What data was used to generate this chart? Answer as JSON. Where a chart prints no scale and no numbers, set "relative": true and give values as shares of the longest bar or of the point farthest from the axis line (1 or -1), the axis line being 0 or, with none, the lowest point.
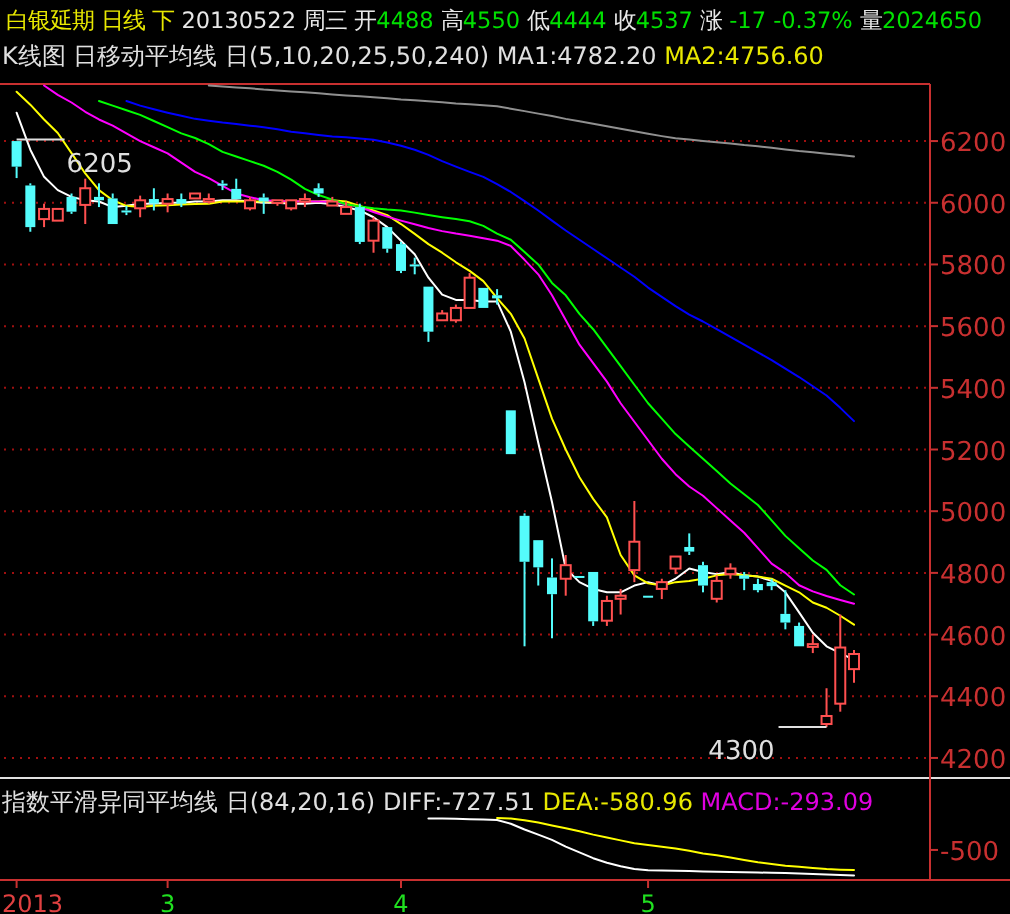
{
  "chart_data": [
    {
      "type": "candlestick",
      "title": "白银延期 日线 下",
      "subtitle": "20130522 周三 开4488 高4550 低4444 收4537 涨 -17 -0.37% 量2024650",
      "categories": [
        null,
        null,
        null,
        null,
        null,
        null,
        null,
        null,
        null,
        null,
        null,
        null,
        null,
        null,
        null,
        null,
        null,
        null,
        null,
        null,
        null,
        null,
        null,
        null,
        null,
        null,
        null,
        null,
        null,
        null,
        null,
        null,
        null,
        null,
        null,
        null,
        null,
        null,
        null,
        null,
        null,
        null,
        null,
        null,
        null,
        null,
        null,
        null,
        null,
        null,
        null,
        null,
        null,
        null,
        null,
        null,
        null,
        null,
        null,
        null,
        null,
        null
      ],
      "ohlc": [
        [
          6200,
          6205,
          6080,
          6117
        ],
        [
          6056,
          6063,
          5906,
          5921
        ],
        [
          5947,
          5997,
          5921,
          5980
        ],
        [
          5942,
          5986,
          5936,
          5980
        ],
        [
          6019,
          6030,
          5964,
          5971
        ],
        [
          5993,
          6078,
          5931,
          6047
        ],
        [
          6019,
          6063,
          5986,
          6008
        ],
        [
          6014,
          6030,
          5925,
          5931
        ],
        [
          5975,
          5990,
          5960,
          5969
        ],
        [
          5982,
          6023,
          5953,
          6008
        ],
        [
          6012,
          6047,
          5975,
          5997
        ],
        [
          5997,
          6030,
          5969,
          6012
        ],
        [
          6012,
          6030,
          5986,
          5997
        ],
        [
          6014,
          6034,
          6008,
          6030
        ],
        [
          6004,
          6030,
          5997,
          6012
        ],
        [
          6062,
          6073,
          6041,
          6056
        ],
        [
          6045,
          6078,
          6008,
          6012
        ],
        [
          5982,
          6019,
          5975,
          6008
        ],
        [
          6017,
          6030,
          5964,
          6004
        ],
        [
          5999,
          6012,
          5990,
          6008
        ],
        [
          5982,
          6012,
          5975,
          6008
        ],
        [
          6004,
          6030,
          5986,
          6012
        ],
        [
          6047,
          6063,
          6019,
          6030
        ],
        [
          5991,
          6019,
          5986,
          6004
        ],
        [
          5964,
          6004,
          5960,
          5986
        ],
        [
          5986,
          5997,
          5866,
          5873
        ],
        [
          5877,
          5953,
          5838,
          5942
        ],
        [
          5921,
          5925,
          5838,
          5851
        ],
        [
          5866,
          5873,
          5772,
          5779
        ],
        [
          5800,
          5822,
          5768,
          5794
        ],
        [
          5728,
          5728,
          5549,
          5582
        ],
        [
          5619,
          5652,
          5615,
          5641
        ],
        [
          5619,
          5670,
          5611,
          5659
        ],
        [
          5659,
          5772,
          5654,
          5757
        ],
        [
          5724,
          5728,
          5654,
          5659
        ],
        [
          5700,
          5720,
          5670,
          5690
        ],
        [
          5327,
          5331,
          5185,
          5185
        ],
        [
          4985,
          4993,
          4562,
          4836
        ],
        [
          4906,
          4906,
          4759,
          4818
        ],
        [
          4785,
          4847,
          4588,
          4731
        ],
        [
          4781,
          4858,
          4726,
          4825
        ],
        [
          4790,
          4795,
          4779,
          4784
        ],
        [
          4803,
          4803,
          4628,
          4643
        ],
        [
          4645,
          4726,
          4628,
          4709
        ],
        [
          4716,
          4748,
          4665,
          4726
        ],
        [
          4809,
          5033,
          4770,
          4901
        ],
        [
          4726,
          4730,
          4720,
          4724
        ],
        [
          4748,
          4781,
          4715,
          4770
        ],
        [
          4814,
          4858,
          4796,
          4853
        ],
        [
          4884,
          4928,
          4858,
          4869
        ],
        [
          4825,
          4836,
          4737,
          4759
        ],
        [
          4716,
          4792,
          4704,
          4774
        ],
        [
          4796,
          4831,
          4781,
          4814
        ],
        [
          4792,
          4803,
          4744,
          4781
        ],
        [
          4764,
          4781,
          4737,
          4744
        ],
        [
          4770,
          4781,
          4744,
          4757
        ],
        [
          4667,
          4744,
          4617,
          4639
        ],
        [
          4628,
          4639,
          4558,
          4562
        ],
        [
          4560,
          4599,
          4540,
          4569
        ],
        [
          4310,
          4426,
          4300,
          4336
        ],
        [
          4376,
          4665,
          4350,
          4558
        ],
        [
          4488,
          4550,
          4444,
          4537
        ]
      ],
      "series": [
        {
          "type": "line",
          "color": "#ffffff",
          "values": [
            6292,
            6172,
            6084,
            6041,
            6019,
            6008,
            6004,
            5986,
            5990,
            5997,
            5997,
            6000,
            6000,
            6004,
            6004,
            6008,
            6008,
            6004,
            6000,
            6000,
            5997,
            5997,
            6000,
            5995,
            5986,
            5975,
            5953,
            5921,
            5877,
            5833,
            5757,
            5702,
            5685,
            5685,
            5680,
            5680,
            5582,
            5418,
            5222,
            5030,
            4814,
            4770,
            4748,
            4737,
            4737,
            4759,
            4770,
            4759,
            4781,
            4814,
            4803,
            4796,
            4803,
            4792,
            4788,
            4774,
            4737,
            4672,
            4606,
            4562,
            4540,
            4518
          ]
        },
        {
          "type": "line",
          "color": "#ffff00",
          "values": [
            6360,
            6318,
            6270,
            6226,
            6161,
            6095,
            6041,
            6008,
            5990,
            5986,
            5990,
            5992,
            5994,
            5996,
            5997,
            6004,
            6004,
            6004,
            6004,
            6004,
            6004,
            6004,
            6004,
            6008,
            6004,
            5990,
            5975,
            5960,
            5931,
            5899,
            5866,
            5838,
            5807,
            5779,
            5746,
            5691,
            5640,
            5560,
            5430,
            5300,
            5200,
            5110,
            5040,
            4980,
            4858,
            4792,
            4766,
            4759,
            4770,
            4774,
            4781,
            4792,
            4796,
            4792,
            4788,
            4781,
            4759,
            4737,
            4704,
            4687,
            4661,
            4632
          ]
        },
        {
          "type": "line",
          "color": "#ff00ff",
          "values": [
            null,
            null,
            6380,
            6350,
            6325,
            6295,
            6270,
            6250,
            6225,
            6200,
            6180,
            6160,
            6130,
            6100,
            6080,
            6055,
            6030,
            6018,
            6008,
            6006,
            6005,
            6004,
            6004,
            6004,
            5995,
            5986,
            5970,
            5955,
            5942,
            5930,
            5918,
            5908,
            5900,
            5893,
            5885,
            5877,
            5860,
            5815,
            5768,
            5700,
            5620,
            5540,
            5480,
            5420,
            5350,
            5290,
            5230,
            5170,
            5120,
            5080,
            5050,
            5010,
            4970,
            4930,
            4880,
            4830,
            4800,
            4760,
            4740,
            4725,
            4712,
            4700
          ]
        },
        {
          "type": "line",
          "color": "#00ff00",
          "values": [
            null,
            null,
            null,
            null,
            null,
            null,
            6330,
            6315,
            6300,
            6285,
            6265,
            6245,
            6225,
            6210,
            6190,
            6165,
            6150,
            6135,
            6120,
            6100,
            6075,
            6045,
            6025,
            6010,
            5995,
            5988,
            5982,
            5978,
            5975,
            5968,
            5960,
            5953,
            5947,
            5940,
            5925,
            5900,
            5880,
            5840,
            5800,
            5740,
            5700,
            5640,
            5590,
            5530,
            5470,
            5410,
            5350,
            5300,
            5250,
            5210,
            5170,
            5130,
            5090,
            5055,
            5020,
            4970,
            4920,
            4880,
            4840,
            4810,
            4760,
            4730
          ]
        },
        {
          "type": "line",
          "color": "#0000ff",
          "values": [
            null,
            null,
            null,
            null,
            null,
            null,
            null,
            null,
            6330,
            6315,
            6303,
            6292,
            6282,
            6272,
            6266,
            6260,
            6255,
            6250,
            6245,
            6238,
            6230,
            6225,
            6220,
            6215,
            6212,
            6208,
            6204,
            6195,
            6185,
            6172,
            6155,
            6135,
            6117,
            6100,
            6084,
            6060,
            6035,
            6005,
            5975,
            5942,
            5910,
            5880,
            5850,
            5820,
            5790,
            5760,
            5725,
            5695,
            5665,
            5637,
            5615,
            5590,
            5565,
            5540,
            5515,
            5490,
            5462,
            5435,
            5405,
            5375,
            5335,
            5292
          ]
        },
        {
          "type": "line",
          "color": "#909090",
          "values": [
            null,
            null,
            null,
            null,
            null,
            null,
            null,
            null,
            null,
            null,
            null,
            null,
            null,
            null,
            6380,
            6377,
            6374,
            6371,
            6367,
            6364,
            6361,
            6358,
            6355,
            6351,
            6348,
            6345,
            6342,
            6339,
            6335,
            6332,
            6329,
            6326,
            6322,
            6319,
            6316,
            6313,
            6305,
            6297,
            6289,
            6281,
            6272,
            6264,
            6256,
            6248,
            6240,
            6232,
            6224,
            6216,
            6209,
            6205,
            6200,
            6196,
            6192,
            6187,
            6183,
            6178,
            6173,
            6168,
            6164,
            6159,
            6155,
            6150
          ]
        }
      ],
      "ylim": [
        4135,
        6385
      ],
      "yticks": [
        4200,
        4400,
        4600,
        4800,
        5000,
        5200,
        5400,
        5600,
        5800,
        6000,
        6200
      ],
      "grid": "y",
      "tick_labels": "y",
      "annotations": [
        "K线图 日移动平均线 日(5,10,20,25,50,240)",
        "MA1:4782.20",
        "MA2:4756.60",
        "6205",
        "4300"
      ]
    },
    {
      "type": "line",
      "categories": [
        "2013",
        null,
        null,
        null,
        null,
        null,
        null,
        null,
        null,
        null,
        null,
        "3",
        null,
        null,
        null,
        null,
        null,
        null,
        null,
        null,
        null,
        null,
        null,
        null,
        null,
        null,
        null,
        null,
        "4",
        null,
        null,
        null,
        null,
        null,
        null,
        null,
        null,
        null,
        null,
        null,
        null,
        null,
        null,
        null,
        null,
        null,
        "5",
        null,
        null,
        null,
        null,
        null,
        null,
        null,
        null,
        null,
        null,
        null,
        null,
        null,
        null,
        null
      ],
      "series": [
        {
          "color": "#ffffff",
          "values": [
            null,
            null,
            null,
            null,
            null,
            null,
            null,
            null,
            null,
            null,
            null,
            null,
            null,
            null,
            null,
            null,
            null,
            null,
            null,
            null,
            null,
            null,
            null,
            null,
            null,
            null,
            null,
            null,
            null,
            null,
            0.99,
            0.99,
            0.985,
            0.98,
            0.975,
            0.965,
            0.9,
            0.8,
            0.71,
            0.62,
            0.5,
            0.4,
            0.3,
            0.22,
            0.16,
            0.11,
            0.09,
            0.085,
            0.08,
            0.075,
            0.07,
            0.065,
            0.06,
            0.055,
            0.05,
            0.045,
            0.04,
            0.035,
            0.025,
            0.015,
            0.008,
            0
          ]
        },
        {
          "color": "#ffff00",
          "values": [
            null,
            null,
            null,
            null,
            null,
            null,
            null,
            null,
            null,
            null,
            null,
            null,
            null,
            null,
            null,
            null,
            null,
            null,
            null,
            null,
            null,
            null,
            null,
            null,
            null,
            null,
            null,
            null,
            null,
            null,
            null,
            null,
            null,
            null,
            null,
            1,
            0.99,
            0.96,
            0.92,
            0.87,
            0.82,
            0.77,
            0.71,
            0.66,
            0.61,
            0.56,
            0.53,
            0.5,
            0.47,
            0.43,
            0.38,
            0.35,
            0.31,
            0.27,
            0.23,
            0.2,
            0.17,
            0.15,
            0.13,
            0.11,
            0.1,
            0.094
          ]
        }
      ],
      "relative": true,
      "annotations": [
        "指数平滑异同平均线 日(84,20,16)",
        "DIFF:-727.51",
        "DEA:-580.96",
        "MACD:-293.09",
        "-500"
      ]
    }
  ]
}
